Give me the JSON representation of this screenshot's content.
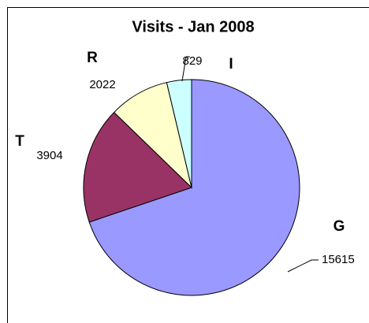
{
  "chart_data": {
    "type": "pie",
    "title": "Visits - Jan 2008",
    "categories": [
      "G",
      "T",
      "R",
      "I"
    ],
    "values": [
      15615,
      3904,
      2022,
      829
    ],
    "colors": [
      "#9999ff",
      "#993366",
      "#ffffcc",
      "#ccffff"
    ]
  }
}
